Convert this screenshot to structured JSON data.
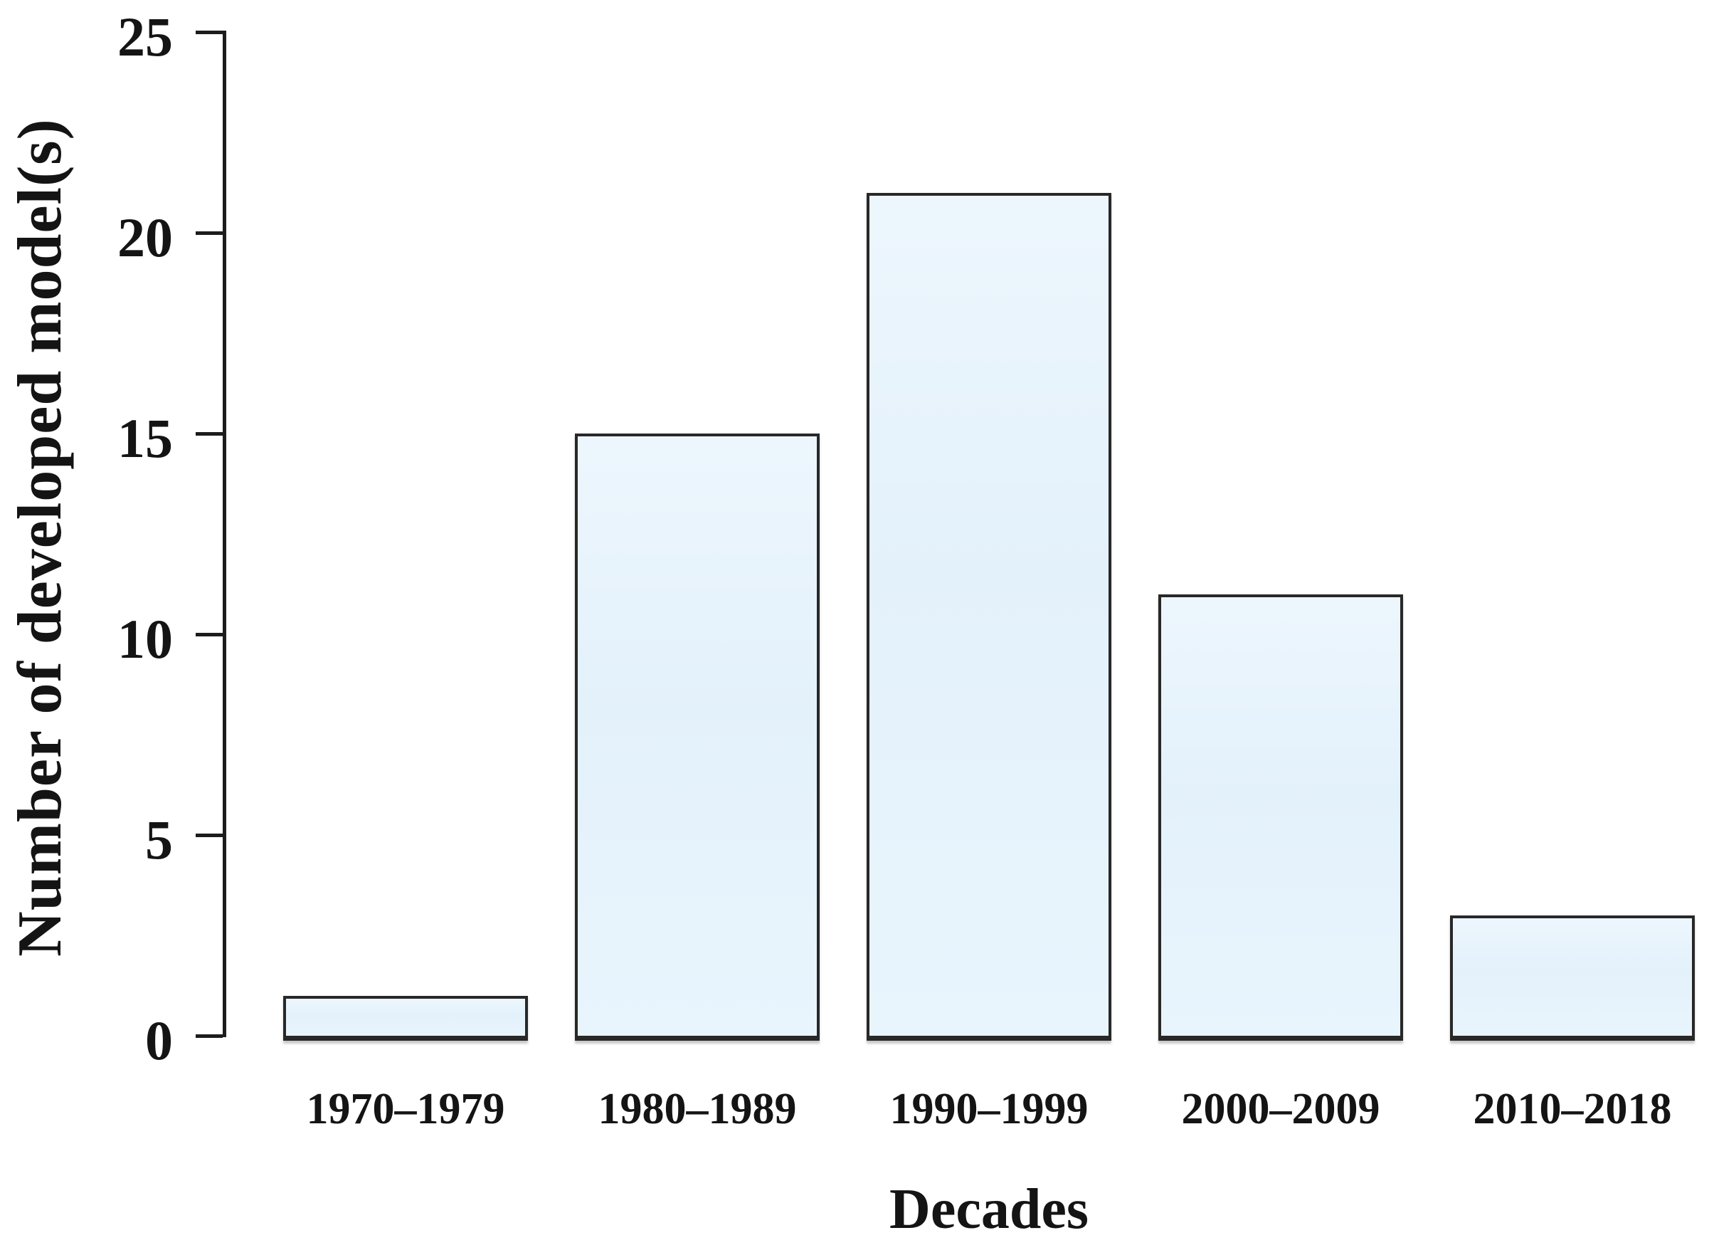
{
  "figure": {
    "background": "#ffffff",
    "text_color": "#141414",
    "axis_color": "#1c1c1c",
    "bar_fill": "#e7f4fc",
    "bar_border": "#282828"
  },
  "chart_data": {
    "type": "bar",
    "categories": [
      "1970–1979",
      "1980–1989",
      "1990–1999",
      "2000–2009",
      "2010–2018"
    ],
    "values": [
      1,
      15,
      21,
      11,
      3
    ],
    "title": "",
    "xlabel": "Decades",
    "ylabel": "Number of developed model(s)",
    "ylim": [
      0,
      25
    ],
    "yticks": [
      0,
      5,
      10,
      15,
      20,
      25
    ],
    "grid": false,
    "legend": false,
    "bar_fill": "#e7f4fc",
    "bar_border": "#282828"
  }
}
